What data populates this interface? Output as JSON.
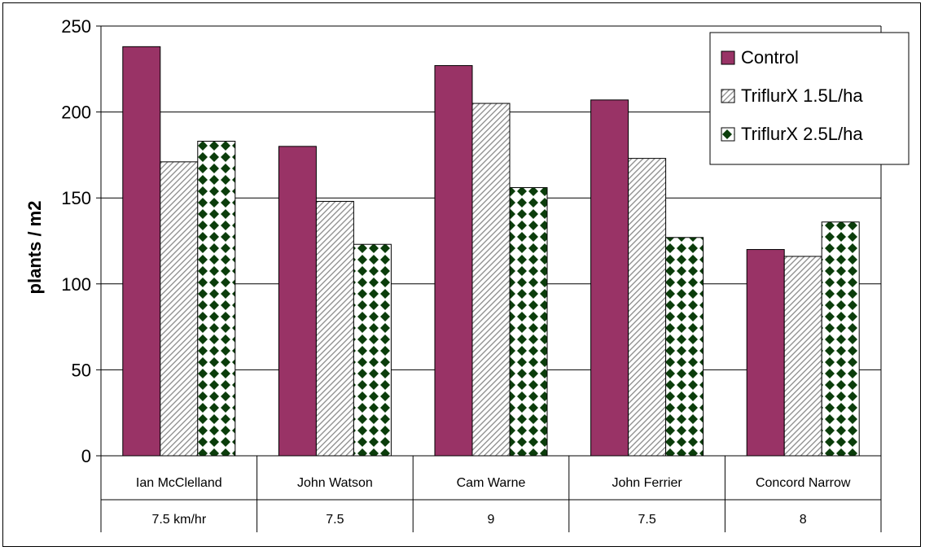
{
  "chart_data": {
    "type": "bar",
    "title": "",
    "xlabel": "",
    "ylabel": "plants / m2",
    "ylim": [
      0,
      250
    ],
    "yticks": [
      0,
      50,
      100,
      150,
      200,
      250
    ],
    "grid": true,
    "legend_position": "top-right",
    "categories": [
      "Ian McClelland",
      "John Watson",
      "Cam Warne",
      "John Ferrier",
      "Concord Narrow"
    ],
    "subcategories": [
      "7.5 km/hr",
      "7.5",
      "9",
      "7.5",
      "8"
    ],
    "series": [
      {
        "name": "Control",
        "color": "#993366",
        "pattern": "solid",
        "values": [
          238,
          180,
          227,
          207,
          120
        ]
      },
      {
        "name": "TriflurX 1.5L/ha",
        "color": "#808080",
        "pattern": "diagonal-hatch",
        "values": [
          171,
          148,
          205,
          173,
          116
        ]
      },
      {
        "name": "TriflurX 2.5L/ha",
        "color": "#003300",
        "pattern": "diamond-check",
        "values": [
          183,
          123,
          156,
          127,
          136
        ]
      }
    ]
  }
}
